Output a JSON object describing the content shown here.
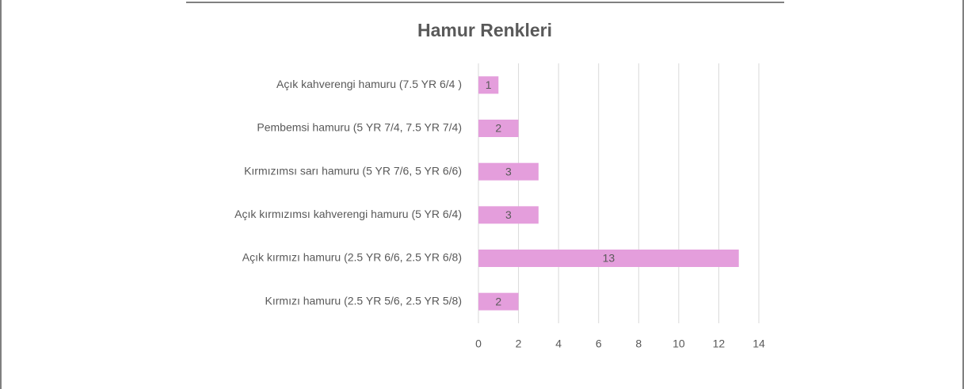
{
  "chart_data": {
    "type": "bar",
    "orientation": "horizontal",
    "title": "Hamur Renkleri",
    "categories": [
      "Açık kahverengi hamuru (7.5 YR 6/4 )",
      "Pembemsi hamuru (5 YR 7/4, 7.5 YR 7/4)",
      "Kırmızımsı sarı hamuru (5 YR 7/6, 5 YR 6/6)",
      "Açık kırmızımsı kahverengi hamuru (5 YR 6/4)",
      "Açık kırmızı hamuru (2.5 YR 6/6, 2.5 YR 6/8)",
      "Kırmızı hamuru (2.5 YR 5/6, 2.5 YR 5/8)"
    ],
    "values": [
      1,
      2,
      3,
      3,
      13,
      2
    ],
    "color": "#e49edc",
    "xlim": [
      0,
      14
    ],
    "xticks": [
      0,
      2,
      4,
      6,
      8,
      10,
      12,
      14
    ],
    "grid": true,
    "data_labels": true
  }
}
